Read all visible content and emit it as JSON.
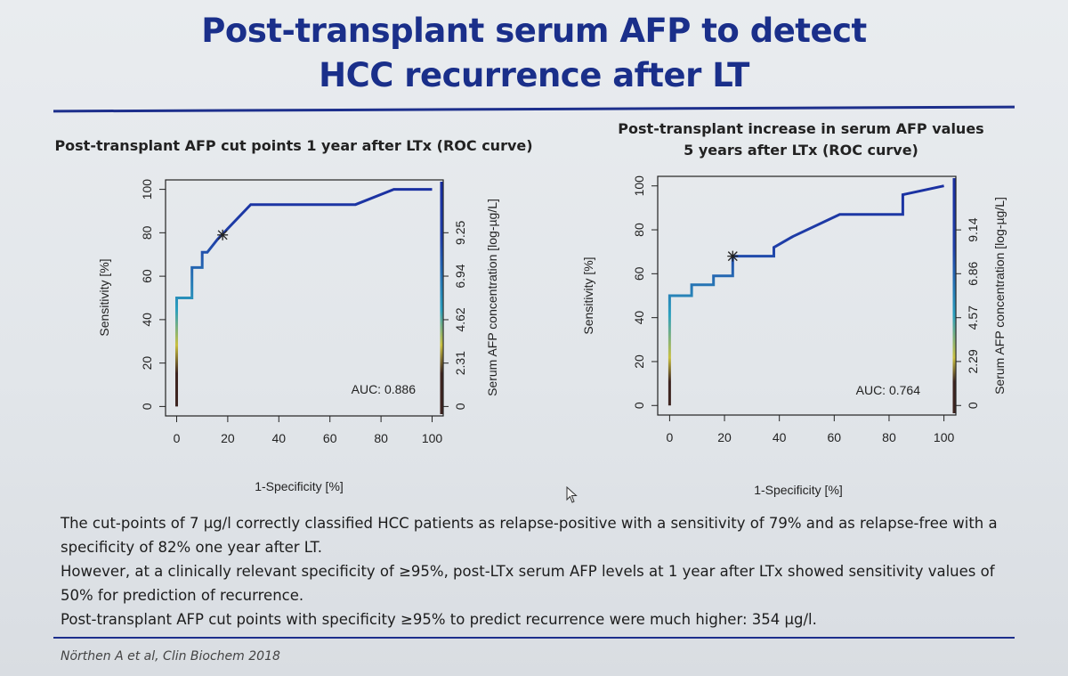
{
  "slide": {
    "title_line1": "Post-transplant serum AFP to detect",
    "title_line2": "HCC recurrence after LT"
  },
  "body": {
    "paragraph1": "The cut-points of 7 µg/l correctly classified HCC patients as relapse-positive with a sensitivity of 79% and as relapse-free with a specificity of 82% one year after LT.",
    "paragraph2": "However, at a clinically relevant specificity of ≥95%, post-LTx serum AFP levels at 1 year after LTx showed sensitivity values of 50% for prediction of recurrence.",
    "paragraph3": "Post-transplant AFP cut points with specificity ≥95% to predict recurrence were much higher: 354 µg/l."
  },
  "citation": "Nörthen A et al, Clin Biochem 2018",
  "cursor_icon": "mouse-pointer-icon",
  "colors": {
    "title": "#1a2f8a",
    "rule": "#1d2f8c",
    "curve_high": "#1f3fa8",
    "curve_mid": "#2b9fbe",
    "curve_low": "#c9c040",
    "curve_base": "#3d2420"
  },
  "chart_data": [
    {
      "type": "line",
      "heading": "Post-transplant AFP cut points 1 year after LTx (ROC curve)",
      "xlabel": "1-Specificity [%]",
      "ylabel": "Sensitivity [%]",
      "right_label": "Serum AFP concentration [log-µg/L]",
      "xlim": [
        0,
        100
      ],
      "ylim": [
        0,
        100
      ],
      "x_ticks": [
        "0",
        "20",
        "40",
        "60",
        "80",
        "100"
      ],
      "y_ticks": [
        "0",
        "20",
        "40",
        "60",
        "80",
        "100"
      ],
      "right_ticks": [
        "0",
        "2.31",
        "4.62",
        "6.94",
        "9.25"
      ],
      "right_max": 11.56,
      "auc_label": "AUC: 0.886",
      "marker": {
        "x": 18,
        "y": 79
      },
      "series": [
        {
          "x": [
            0,
            0,
            6,
            6,
            10,
            10,
            12,
            16,
            29,
            70,
            85,
            100
          ],
          "y": [
            0,
            50,
            50,
            64,
            64,
            71,
            71,
            77,
            93,
            93,
            100,
            100
          ]
        }
      ]
    },
    {
      "type": "line",
      "heading_line1": "Post-transplant increase in serum AFP values",
      "heading_line2": "5 years after LTx (ROC curve)",
      "xlabel": "1-Specificity [%]",
      "ylabel": "Sensitivity [%]",
      "right_label": "Serum AFP concentration [log-µg/L]",
      "xlim": [
        0,
        100
      ],
      "ylim": [
        0,
        100
      ],
      "x_ticks": [
        "0",
        "20",
        "40",
        "60",
        "80",
        "100"
      ],
      "y_ticks": [
        "0",
        "20",
        "40",
        "60",
        "80",
        "100"
      ],
      "right_ticks": [
        "0",
        "2.29",
        "4.57",
        "6.86",
        "9.14"
      ],
      "right_max": 11.43,
      "auc_label": "AUC: 0.764",
      "marker": {
        "x": 23,
        "y": 68
      },
      "series": [
        {
          "x": [
            0,
            0,
            8,
            8,
            16,
            16,
            23,
            23,
            38,
            38,
            45,
            62,
            85,
            85,
            100
          ],
          "y": [
            0,
            50,
            50,
            55,
            55,
            59,
            59,
            68,
            68,
            72,
            77,
            87,
            87,
            96,
            100
          ]
        }
      ]
    }
  ]
}
